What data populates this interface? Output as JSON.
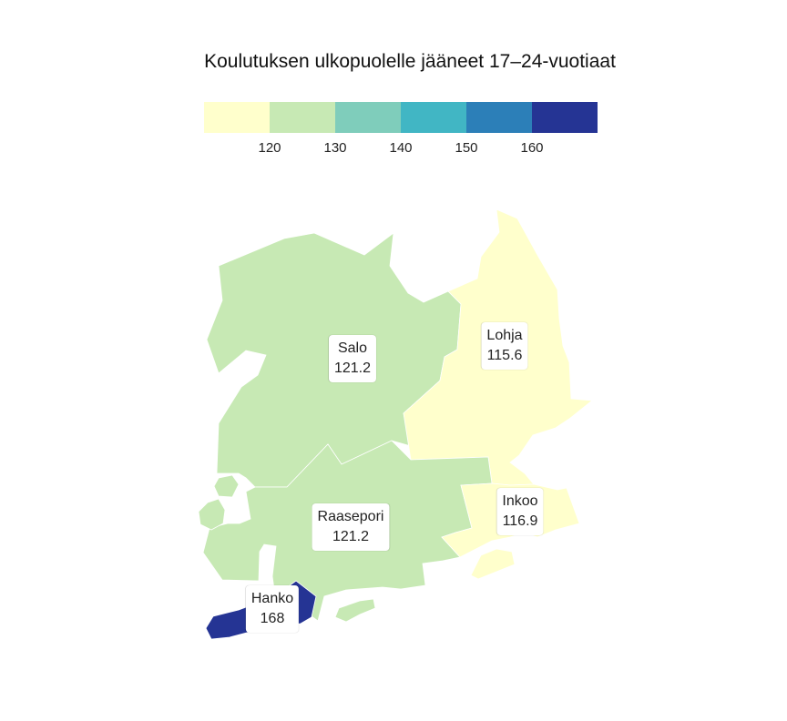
{
  "title": "Koulutuksen ulkopuolelle jääneet 17–24-vuotiaat",
  "legend": {
    "colors": [
      "#ffffcc",
      "#c7e9b4",
      "#7fcdbb",
      "#41b6c4",
      "#2c7fb8",
      "#253494"
    ],
    "ticks": [
      "120",
      "130",
      "140",
      "150",
      "160"
    ]
  },
  "regions": [
    {
      "name": "Salo",
      "value": "121.2",
      "color": "#c7e9b4"
    },
    {
      "name": "Lohja",
      "value": "115.6",
      "color": "#ffffcc"
    },
    {
      "name": "Raasepori",
      "value": "121.2",
      "color": "#c7e9b4"
    },
    {
      "name": "Inkoo",
      "value": "116.9",
      "color": "#ffffcc"
    },
    {
      "name": "Hanko",
      "value": "168",
      "color": "#253494"
    }
  ]
}
